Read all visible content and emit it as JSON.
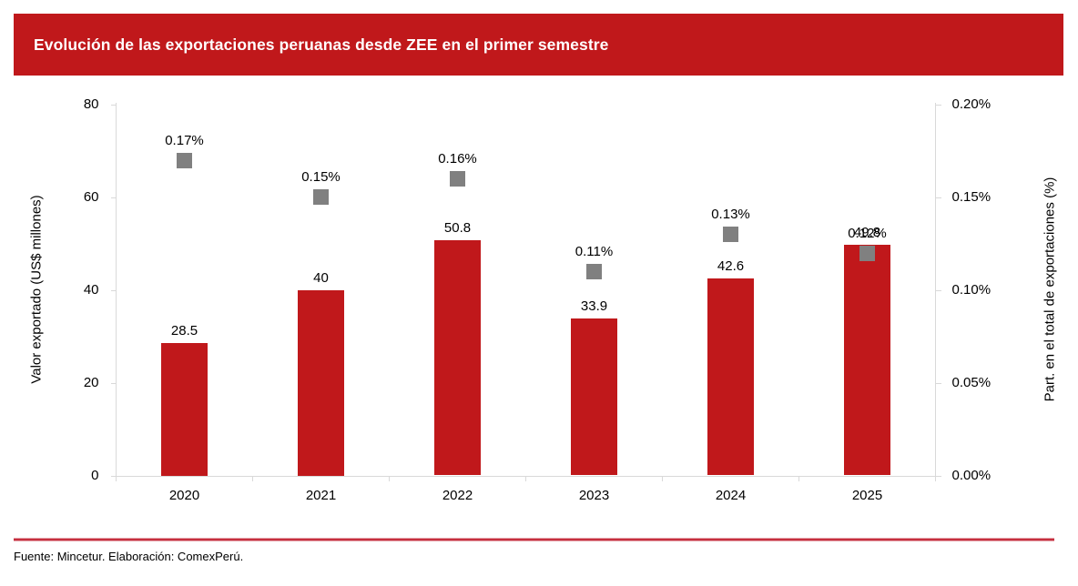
{
  "banner": {
    "title": "Evolución de las exportaciones peruanas desde ZEE en el primer semestre"
  },
  "footer": {
    "source": "Fuente: Mincetur. Elaboración: ComexPerú."
  },
  "colors": {
    "banner_red": "#C0181B",
    "bar_red": "#C0181B",
    "marker_gray": "#808080",
    "axis_gray": "#D9D9D9",
    "divider_red": "#C62F3E",
    "text": "#000000",
    "title_text": "#FFFFFF"
  },
  "chart_data": {
    "type": "bar",
    "categories": [
      "2020",
      "2021",
      "2022",
      "2023",
      "2024",
      "2025"
    ],
    "series": [
      {
        "name": "Valor exportado (US$ millones)",
        "type": "bar",
        "axis": "left",
        "color": "#C0181B",
        "values": [
          28.5,
          40,
          50.8,
          33.9,
          42.6,
          49.8
        ],
        "labels": [
          "28.5",
          "40",
          "50.8",
          "33.9",
          "42.6",
          "49.8"
        ]
      },
      {
        "name": "Part. en el total de exportaciones (%)",
        "type": "scatter",
        "marker": "square",
        "axis": "right",
        "color": "#808080",
        "values": [
          0.17,
          0.15,
          0.16,
          0.11,
          0.13,
          0.12
        ],
        "labels": [
          "0.17%",
          "0.15%",
          "0.16%",
          "0.11%",
          "0.13%",
          "0.12%"
        ]
      }
    ],
    "left_axis": {
      "title": "Valor exportado (US$ millones)",
      "min": 0,
      "max": 80,
      "ticks": [
        "0",
        "20",
        "40",
        "60",
        "80"
      ],
      "tick_values": [
        0,
        20,
        40,
        60,
        80
      ]
    },
    "right_axis": {
      "title": "Part. en el total de exportaciones (%)",
      "min": 0,
      "max": 0.2,
      "ticks": [
        "0.00%",
        "0.05%",
        "0.10%",
        "0.15%",
        "0.20%"
      ],
      "tick_values": [
        0,
        0.05,
        0.1,
        0.15,
        0.2
      ]
    },
    "grid": false,
    "legend": "none"
  }
}
